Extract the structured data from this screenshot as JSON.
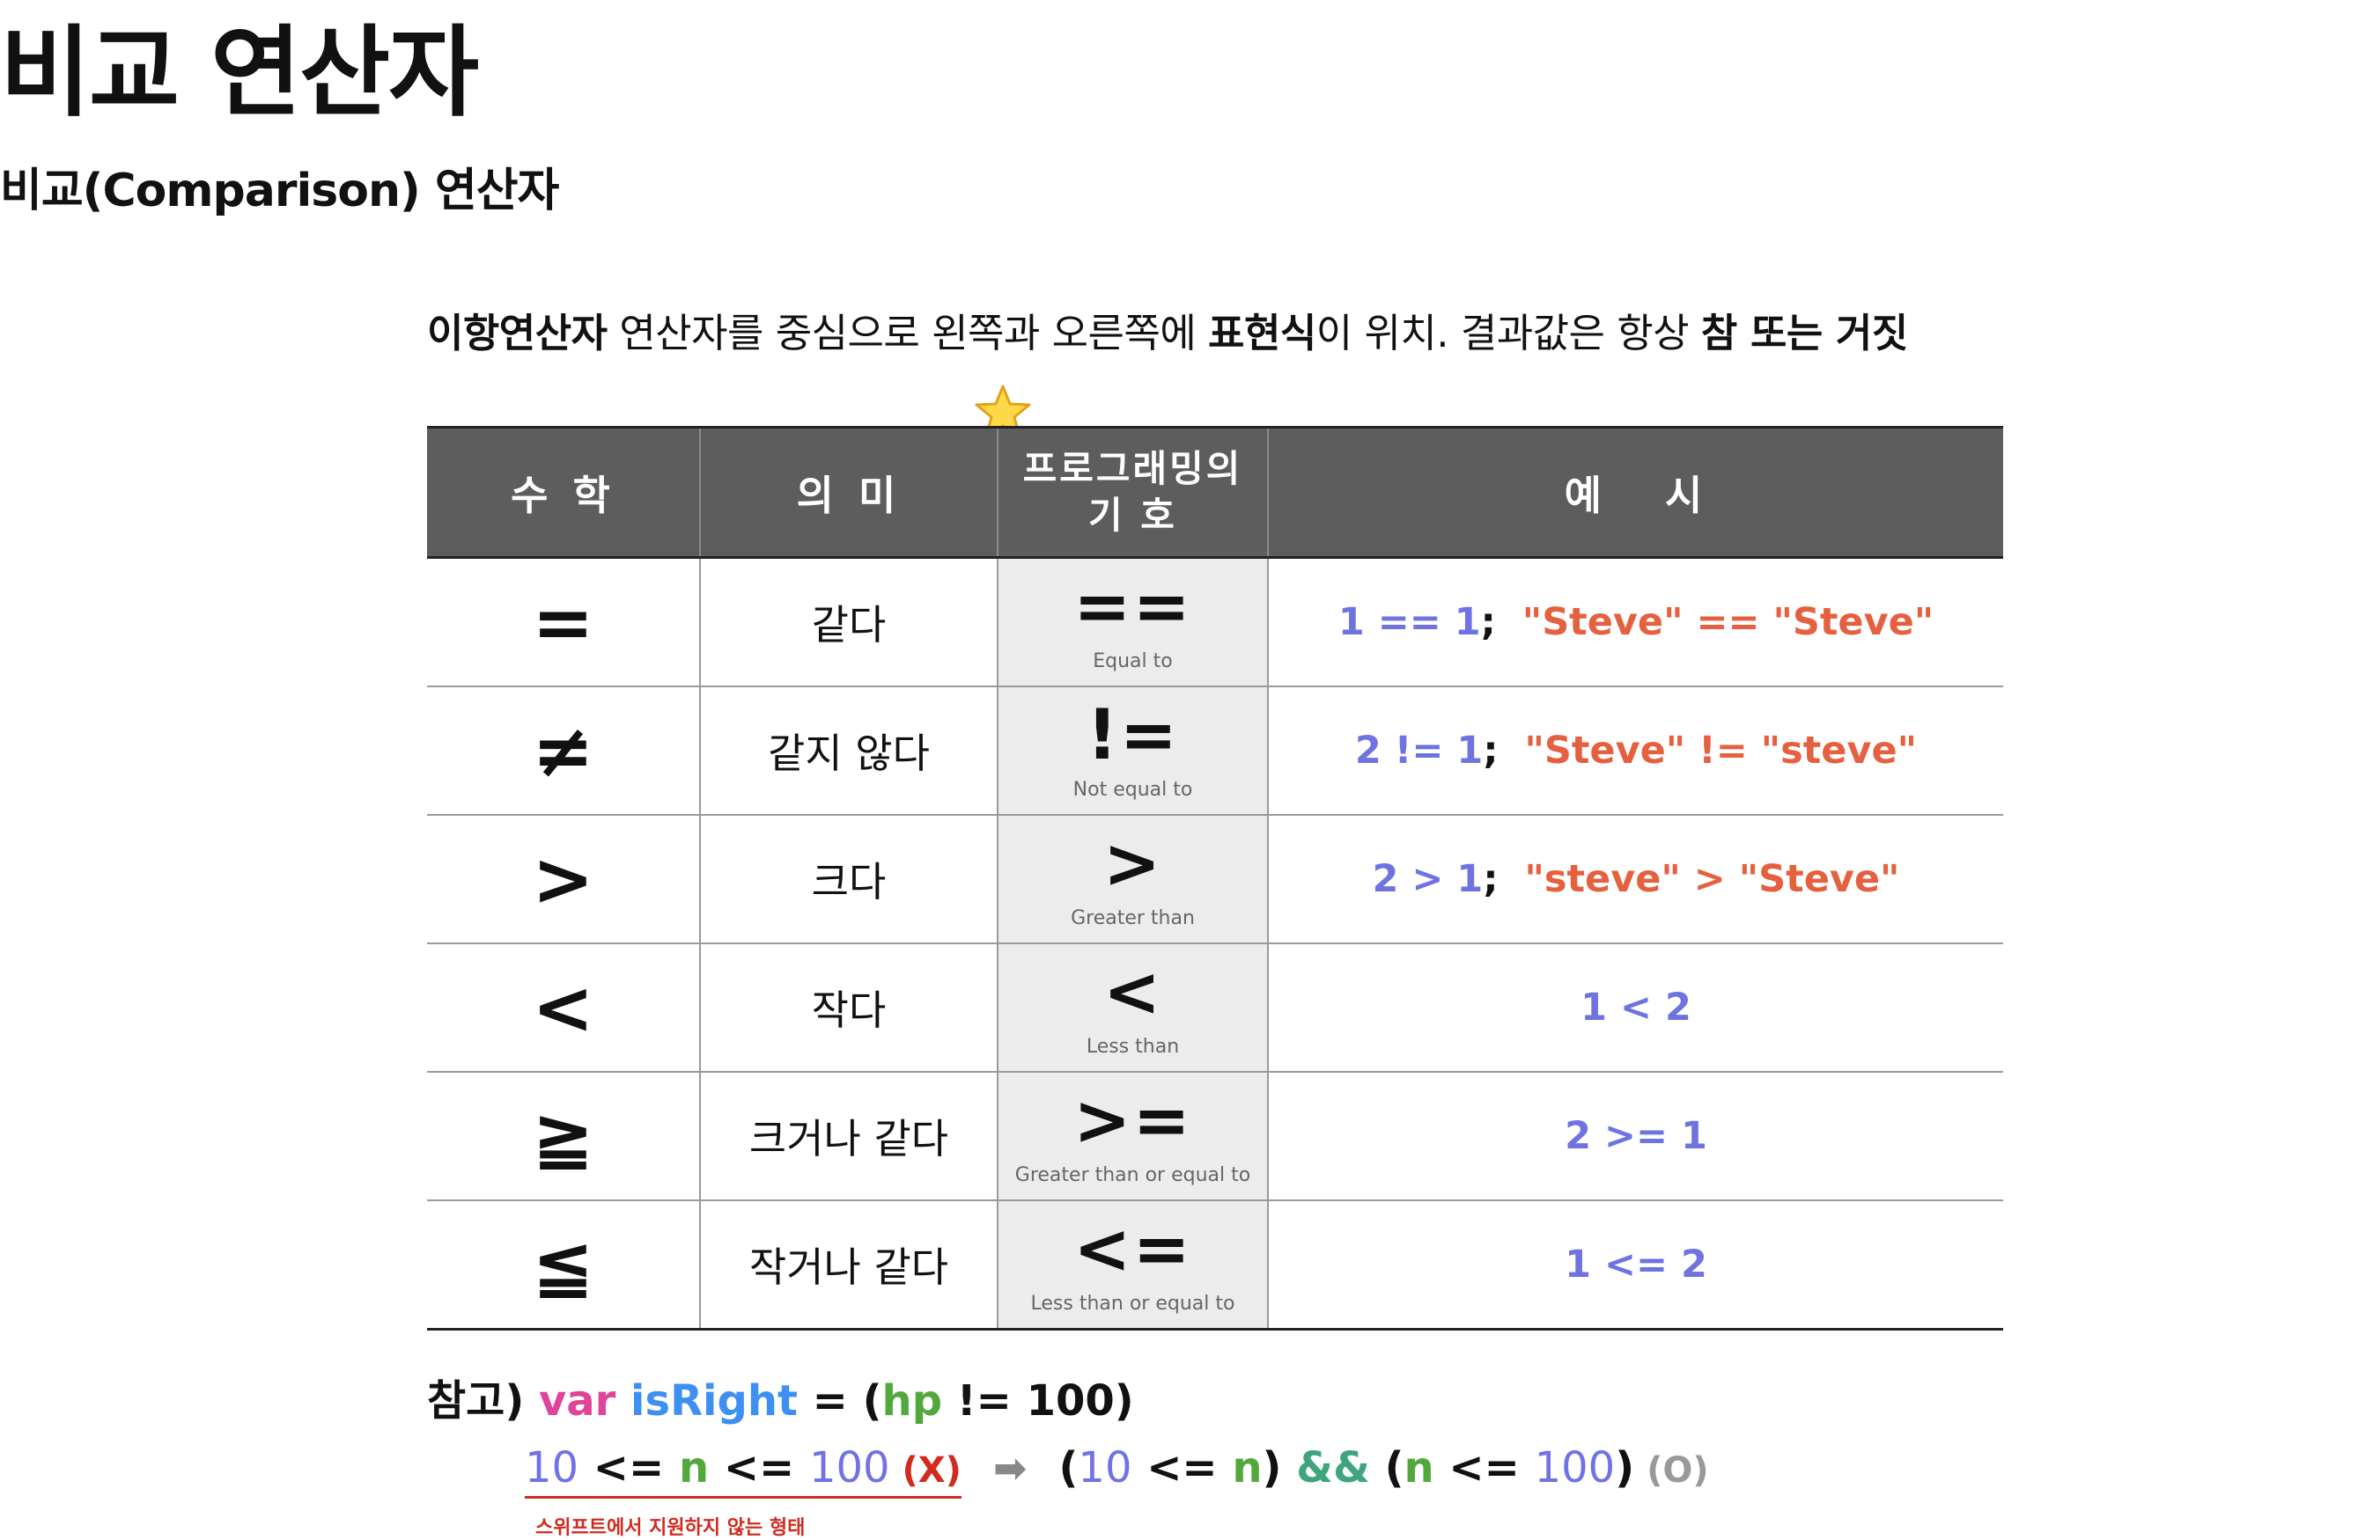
{
  "title": "비교 연산자",
  "subtitle": "비교(Comparison) 연산자",
  "intro": {
    "b1": "이항연산자",
    "t1": " 연산자를 중심으로 왼쪽과 오른쪽에 ",
    "b2": "표현식",
    "t2": "이 위치. 결과값은 항상 ",
    "b3": "참 또는 거짓"
  },
  "table": {
    "headers": [
      "수 학",
      "의 미",
      "프로그래밍의 기 호",
      "예   시"
    ],
    "rows": [
      {
        "math": "=",
        "meaning": "같다",
        "symbol": "==",
        "symbol_desc": "Equal to",
        "ex": [
          "1 == 1",
          ";  ",
          "\"Steve\" == \"Steve\""
        ]
      },
      {
        "math": "≠",
        "meaning": "같지 않다",
        "symbol": "!=",
        "symbol_desc": "Not equal to",
        "ex": [
          "2 != 1",
          ";  ",
          "\"Steve\" != \"steve\""
        ]
      },
      {
        "math": ">",
        "meaning": "크다",
        "symbol": ">",
        "symbol_desc": "Greater than",
        "ex": [
          "2 > 1",
          ";  ",
          "\"steve\" > \"Steve\""
        ]
      },
      {
        "math": "<",
        "meaning": "작다",
        "symbol": "<",
        "symbol_desc": "Less than",
        "ex": [
          "1 < 2"
        ]
      },
      {
        "math": "≧",
        "meaning": "크거나 같다",
        "symbol": ">=",
        "symbol_desc": "Greater than or equal to",
        "ex": [
          "2 >= 1"
        ]
      },
      {
        "math": "≦",
        "meaning": "작거나 같다",
        "symbol": "<=",
        "symbol_desc": "Less than or equal to",
        "ex": [
          "1 <= 2"
        ]
      }
    ]
  },
  "note": {
    "prefix": "참고) ",
    "kw": "var",
    "name": "isRight",
    "eq": " = (",
    "hp": "hp",
    "rest": " != 100)"
  },
  "formula": {
    "left": {
      "n10": "10",
      "op1": " <= ",
      "n": "n",
      "op2": " <= ",
      "n100": "100",
      "mark": " (X)"
    },
    "arrow": "➡",
    "right": {
      "p1": "(",
      "n10": "10",
      "op1": " <= ",
      "n": "n",
      "p2": ") ",
      "and": "&&",
      "p3": " (",
      "n2": "n",
      "op2": " <= ",
      "n100": "100",
      "p4": ")",
      "mark": " (O)"
    },
    "footnote": "스위프트에서 지원하지 않는 형태"
  },
  "colors": {
    "header_bg": "#5d5d5d",
    "symbol_bg": "#ececec",
    "blue": "#6f73e2",
    "green": "#3ea57d",
    "red": "#e5603f"
  }
}
